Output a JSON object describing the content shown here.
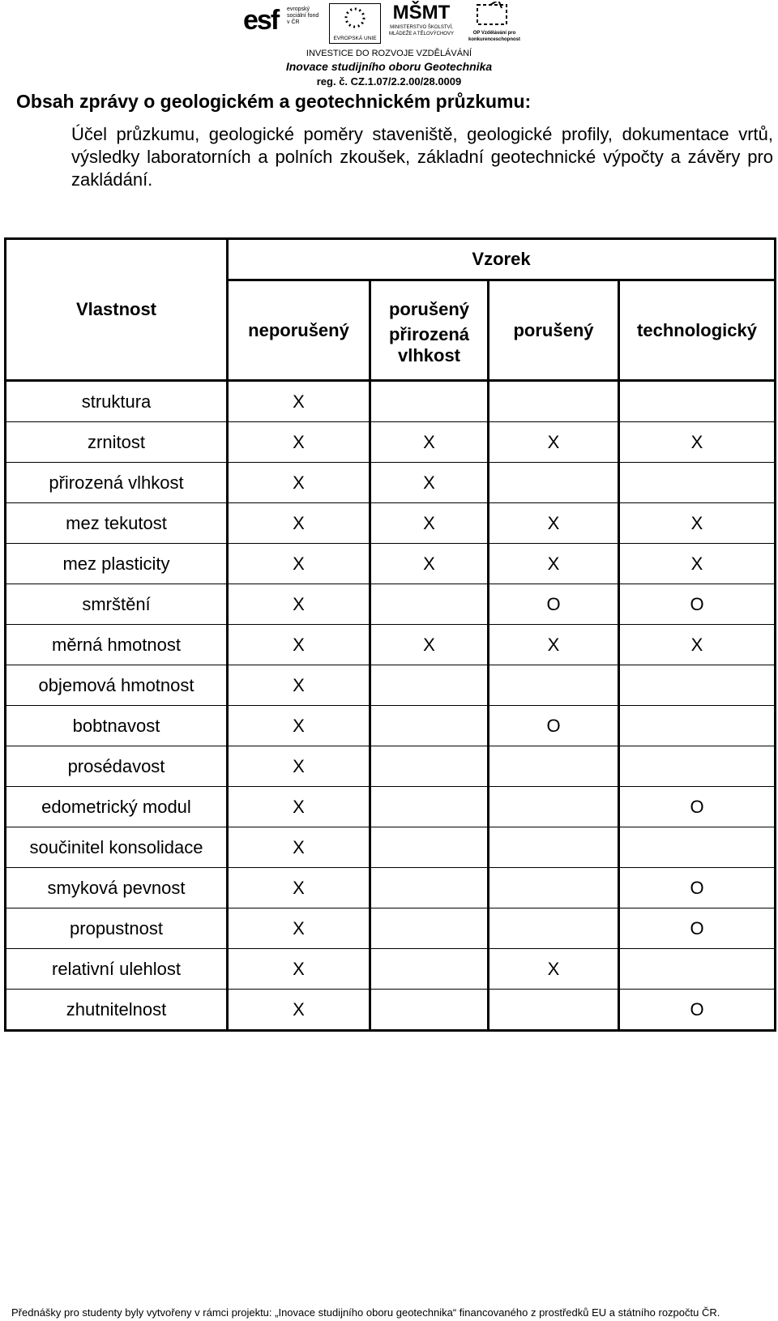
{
  "header": {
    "logo_esf": "evropský sociální fond v ČR",
    "logo_eu": "EVROPSKÁ UNIE",
    "logo_msmt": "MINISTERSTVO ŠKOLSTVÍ, MLÁDEŽE A TĚLOVÝCHOVY",
    "logo_op": "OP Vzdělávání pro konkurenceschopnost",
    "investice": "INVESTICE DO ROZVOJE VZDĚLÁVÁNÍ",
    "project": "Inovace studijního oboru Geotechnika",
    "reg": "reg. č. CZ.1.07/2.2.00/28.0009"
  },
  "title": "Obsah zprávy o geologickém a geotechnickém průzkumu:",
  "paragraph": "Účel průzkumu, geologické poměry staveniště, geologické profily, dokumentace vrtů, výsledky laboratorních a polních zkoušek, základní geotechnické výpočty a závěry pro zakládání.",
  "table": {
    "header": {
      "property": "Vlastnost",
      "group": "Vzorek",
      "columns": [
        [
          "neporušený"
        ],
        [
          "porušený",
          "přirozená vlhkost"
        ],
        [
          "porušený"
        ],
        [
          "technologický"
        ]
      ]
    },
    "rows": [
      [
        "struktura",
        "X",
        null,
        null,
        null
      ],
      [
        "zrnitost",
        "X",
        "X",
        "X",
        "X"
      ],
      [
        "přirozená vlhkost",
        "X",
        "X",
        null,
        null
      ],
      [
        "mez tekutost",
        "X",
        "X",
        "X",
        "X"
      ],
      [
        "mez plasticity",
        "X",
        "X",
        "X",
        "X"
      ],
      [
        "smrštění",
        "X",
        null,
        "O",
        "O"
      ],
      [
        "měrná hmotnost",
        "X",
        "X",
        "X",
        "X"
      ],
      [
        "objemová hmotnost",
        "X",
        null,
        null,
        null
      ],
      [
        "bobtnavost",
        "X",
        null,
        "O",
        null
      ],
      [
        "prosédavost",
        "X",
        null,
        null,
        null
      ],
      [
        "edometrický modul",
        "X",
        null,
        null,
        "O"
      ],
      [
        "součinitel konsolidace",
        "X",
        null,
        null,
        null
      ],
      [
        "smyková pevnost",
        "X",
        null,
        null,
        "O"
      ],
      [
        "propustnost",
        "X",
        null,
        null,
        "O"
      ],
      [
        "relativní ulehlost",
        "X",
        null,
        "X",
        null
      ],
      [
        "zhutnitelnost",
        "X",
        null,
        null,
        "O"
      ]
    ]
  },
  "footer": "Přednášky pro studenty byly vytvořeny v rámci projektu: „Inovace studijního oboru geotechnika“ financovaného z prostředků EU a státního rozpočtu ČR."
}
